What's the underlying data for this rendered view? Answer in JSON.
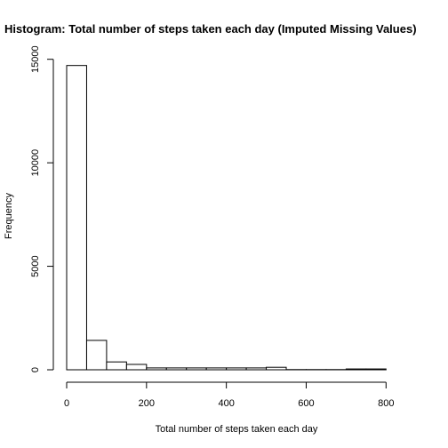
{
  "chart_data": {
    "type": "bar",
    "title": "Histogram: Total number of steps taken each day (Imputed Missing Values)",
    "xlabel": "Total number of steps taken each day",
    "ylabel": "Frequency",
    "bin_width": 50,
    "bins": [
      {
        "start": 0,
        "end": 50,
        "count": 14700
      },
      {
        "start": 50,
        "end": 100,
        "count": 1420
      },
      {
        "start": 100,
        "end": 150,
        "count": 380
      },
      {
        "start": 150,
        "end": 200,
        "count": 260
      },
      {
        "start": 200,
        "end": 250,
        "count": 90
      },
      {
        "start": 250,
        "end": 300,
        "count": 90
      },
      {
        "start": 300,
        "end": 350,
        "count": 90
      },
      {
        "start": 350,
        "end": 400,
        "count": 90
      },
      {
        "start": 400,
        "end": 450,
        "count": 90
      },
      {
        "start": 450,
        "end": 500,
        "count": 90
      },
      {
        "start": 500,
        "end": 550,
        "count": 120
      },
      {
        "start": 550,
        "end": 600,
        "count": 10
      },
      {
        "start": 600,
        "end": 650,
        "count": 10
      },
      {
        "start": 650,
        "end": 700,
        "count": 10
      },
      {
        "start": 700,
        "end": 750,
        "count": 40
      },
      {
        "start": 750,
        "end": 800,
        "count": 40
      }
    ],
    "xlim": [
      0,
      850
    ],
    "ylim": [
      0,
      15000
    ],
    "x_ticks": [
      0,
      200,
      400,
      600,
      800
    ],
    "y_ticks": [
      0,
      5000,
      10000,
      15000
    ],
    "grid": false
  }
}
